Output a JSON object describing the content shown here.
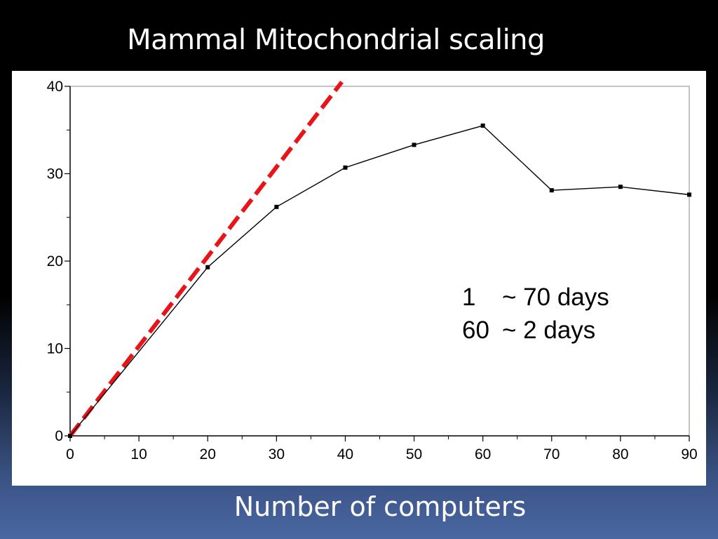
{
  "slide": {
    "title": "Mammal Mitochondrial scaling",
    "xlabel": "Number of computers"
  },
  "chart_data": {
    "type": "line",
    "title": "Mammal Mitochondrial scaling",
    "xlabel": "Number of computers",
    "ylabel": "",
    "xlim": [
      0,
      90
    ],
    "ylim": [
      0,
      40
    ],
    "x_ticks": [
      0,
      10,
      20,
      30,
      40,
      50,
      60,
      70,
      80,
      90
    ],
    "y_ticks": [
      0,
      10,
      20,
      30,
      40
    ],
    "grid": false,
    "series": [
      {
        "color": "#000000",
        "marker": "square",
        "x": [
          0,
          20,
          30,
          40,
          50,
          60,
          70,
          80,
          90
        ],
        "y": [
          0,
          19.3,
          26.2,
          30.7,
          33.3,
          35.5,
          28.1,
          28.5,
          27.6
        ]
      },
      {
        "color": "#e8141a",
        "dash": true,
        "x": [
          0,
          39.5
        ],
        "y": [
          0,
          40.5
        ]
      }
    ],
    "annotations": [
      {
        "left": "1",
        "right": "~ 70 days"
      },
      {
        "left": "60",
        "right": "~ 2 days"
      }
    ]
  }
}
